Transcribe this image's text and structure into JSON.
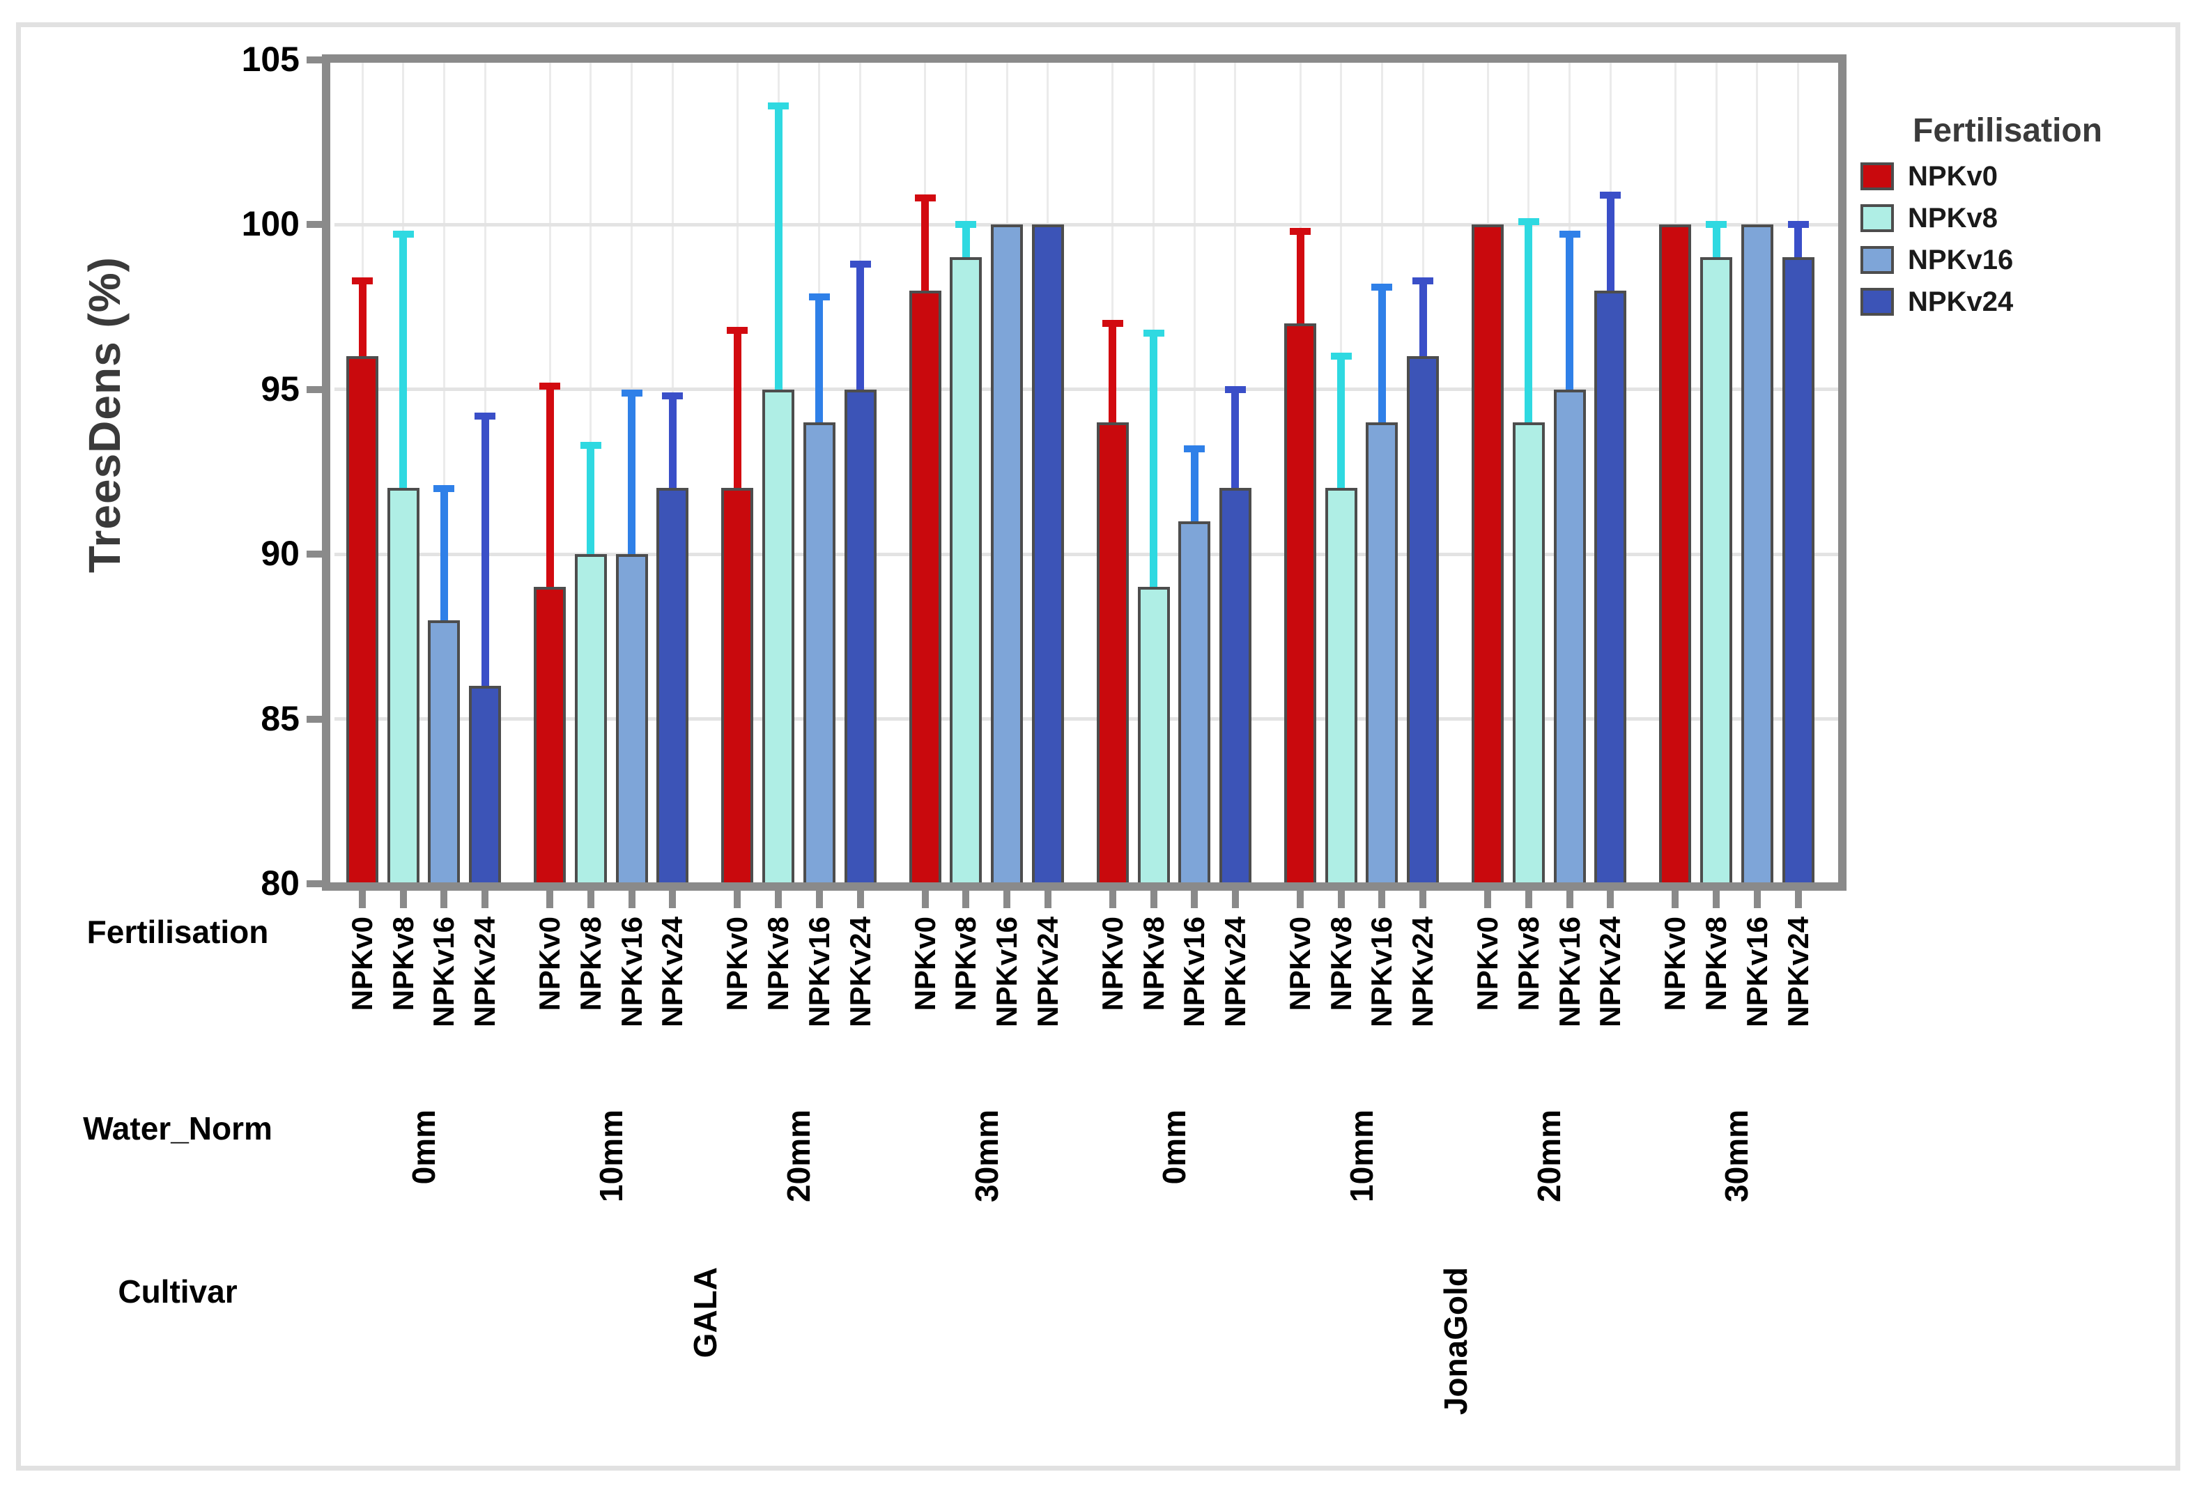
{
  "y_axis": {
    "title": "TreesDens (%)",
    "ticks": [
      105,
      100,
      95,
      90,
      85,
      80
    ],
    "min": 80,
    "max": 105
  },
  "axis_rows": {
    "fertilisation_label": "Fertilisation",
    "water_label": "Water_Norm",
    "cultivar_label": "Cultivar"
  },
  "legend": {
    "title": "Fertilisation",
    "items": [
      {
        "label": "NPKv0",
        "color": "#C9090D"
      },
      {
        "label": "NPKv8",
        "color": "#AFEEE5"
      },
      {
        "label": "NPKv16",
        "color": "#7EA5D8"
      },
      {
        "label": "NPKv24",
        "color": "#3C54B7"
      }
    ]
  },
  "chart_data": {
    "type": "bar",
    "title": "",
    "xlabel": "",
    "ylabel": "TreesDens (%)",
    "ylim": [
      80,
      105
    ],
    "grid": "on",
    "legend_position": "right-top",
    "series_levels": [
      "NPKv0",
      "NPKv8",
      "NPKv16",
      "NPKv24"
    ],
    "series_fill_colors": [
      "#C9090D",
      "#AFEEE5",
      "#7EA5D8",
      "#3C54B7"
    ],
    "series_error_colors": [
      "#D20A10",
      "#2FD9E1",
      "#2F80E8",
      "#3A4FC8"
    ],
    "groups": [
      {
        "cultivar": "GALA",
        "water": "0mm",
        "values": [
          96,
          92,
          88,
          86
        ],
        "error_tops": [
          98.4,
          99.8,
          92.1,
          94.3
        ]
      },
      {
        "cultivar": "GALA",
        "water": "10mm",
        "values": [
          89,
          90,
          90,
          92
        ],
        "error_tops": [
          95.2,
          93.4,
          95.0,
          94.9
        ]
      },
      {
        "cultivar": "GALA",
        "water": "20mm",
        "values": [
          92,
          95,
          94,
          95
        ],
        "error_tops": [
          96.9,
          103.7,
          97.9,
          98.9
        ]
      },
      {
        "cultivar": "GALA",
        "water": "30mm",
        "values": [
          98,
          99,
          100,
          100
        ],
        "error_tops": [
          100.9,
          100.1,
          null,
          null
        ]
      },
      {
        "cultivar": "JonaGold",
        "water": "0mm",
        "values": [
          94,
          89,
          91,
          92
        ],
        "error_tops": [
          97.1,
          96.8,
          93.3,
          95.1
        ]
      },
      {
        "cultivar": "JonaGold",
        "water": "10mm",
        "values": [
          97,
          92,
          94,
          96
        ],
        "error_tops": [
          99.9,
          96.1,
          98.2,
          98.4
        ]
      },
      {
        "cultivar": "JonaGold",
        "water": "20mm",
        "values": [
          100,
          94,
          95,
          98
        ],
        "error_tops": [
          null,
          100.2,
          99.8,
          101.0
        ]
      },
      {
        "cultivar": "JonaGold",
        "water": "30mm",
        "values": [
          100,
          99,
          100,
          99
        ],
        "error_tops": [
          null,
          100.1,
          null,
          100.1
        ]
      }
    ]
  }
}
